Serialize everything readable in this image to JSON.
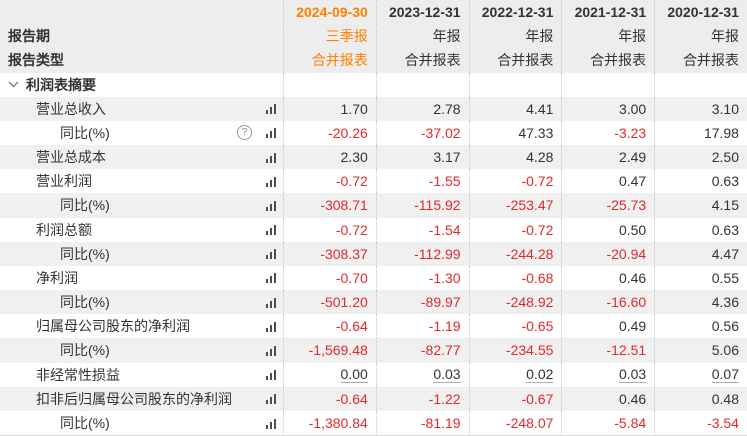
{
  "header": {
    "date_columns": [
      "2024-09-30",
      "2023-12-31",
      "2022-12-31",
      "2021-12-31",
      "2020-12-31"
    ],
    "period_row": {
      "label": "报告期",
      "values": [
        "三季报",
        "年报",
        "年报",
        "年报",
        "年报"
      ]
    },
    "type_row": {
      "label": "报告类型",
      "values": [
        "合并报表",
        "合并报表",
        "合并报表",
        "合并报表",
        "合并报表"
      ]
    }
  },
  "section": {
    "title": "利润表摘要",
    "icon": "chevron-down-icon"
  },
  "icons": {
    "row_chart": "bar-chart-icon",
    "help": "question-circle-icon"
  },
  "colors": {
    "accent_orange": "#ff8000",
    "negative_red": "#e22929",
    "text_dark": "#333333",
    "header_bg": "#ededed",
    "stripe_bg": "#f0f0f0",
    "divider_dotted": "#c9c9c9"
  },
  "rows": [
    {
      "label": "营业总收入",
      "indent": 1,
      "help": false,
      "underline": false,
      "values": [
        "1.70",
        "2.78",
        "4.41",
        "3.00",
        "3.10"
      ]
    },
    {
      "label": "同比(%)",
      "indent": 2,
      "help": true,
      "underline": false,
      "values": [
        "-20.26",
        "-37.02",
        "47.33",
        "-3.23",
        "17.98"
      ]
    },
    {
      "label": "营业总成本",
      "indent": 1,
      "help": false,
      "underline": false,
      "values": [
        "2.30",
        "3.17",
        "4.28",
        "2.49",
        "2.50"
      ]
    },
    {
      "label": "营业利润",
      "indent": 1,
      "help": false,
      "underline": false,
      "values": [
        "-0.72",
        "-1.55",
        "-0.72",
        "0.47",
        "0.63"
      ]
    },
    {
      "label": "同比(%)",
      "indent": 2,
      "help": false,
      "underline": false,
      "values": [
        "-308.71",
        "-115.92",
        "-253.47",
        "-25.73",
        "4.15"
      ]
    },
    {
      "label": "利润总额",
      "indent": 1,
      "help": false,
      "underline": false,
      "values": [
        "-0.72",
        "-1.54",
        "-0.72",
        "0.50",
        "0.63"
      ]
    },
    {
      "label": "同比(%)",
      "indent": 2,
      "help": false,
      "underline": false,
      "values": [
        "-308.37",
        "-112.99",
        "-244.28",
        "-20.94",
        "4.47"
      ]
    },
    {
      "label": "净利润",
      "indent": 1,
      "help": false,
      "underline": false,
      "values": [
        "-0.70",
        "-1.30",
        "-0.68",
        "0.46",
        "0.55"
      ]
    },
    {
      "label": "同比(%)",
      "indent": 2,
      "help": false,
      "underline": false,
      "values": [
        "-501.20",
        "-89.97",
        "-248.92",
        "-16.60",
        "4.36"
      ]
    },
    {
      "label": "归属母公司股东的净利润",
      "indent": 1,
      "help": false,
      "underline": false,
      "values": [
        "-0.64",
        "-1.19",
        "-0.65",
        "0.49",
        "0.56"
      ]
    },
    {
      "label": "同比(%)",
      "indent": 2,
      "help": false,
      "underline": false,
      "values": [
        "-1,569.48",
        "-82.77",
        "-234.55",
        "-12.51",
        "5.06"
      ]
    },
    {
      "label": "非经常性损益",
      "indent": 1,
      "help": false,
      "underline": true,
      "values": [
        "0.00",
        "0.03",
        "0.02",
        "0.03",
        "0.07"
      ]
    },
    {
      "label": "扣非后归属母公司股东的净利润",
      "indent": 1,
      "help": false,
      "underline": false,
      "values": [
        "-0.64",
        "-1.22",
        "-0.67",
        "0.46",
        "0.48"
      ]
    },
    {
      "label": "同比(%)",
      "indent": 2,
      "help": false,
      "underline": false,
      "values": [
        "-1,380.84",
        "-81.19",
        "-248.07",
        "-5.84",
        "-3.54"
      ]
    }
  ]
}
